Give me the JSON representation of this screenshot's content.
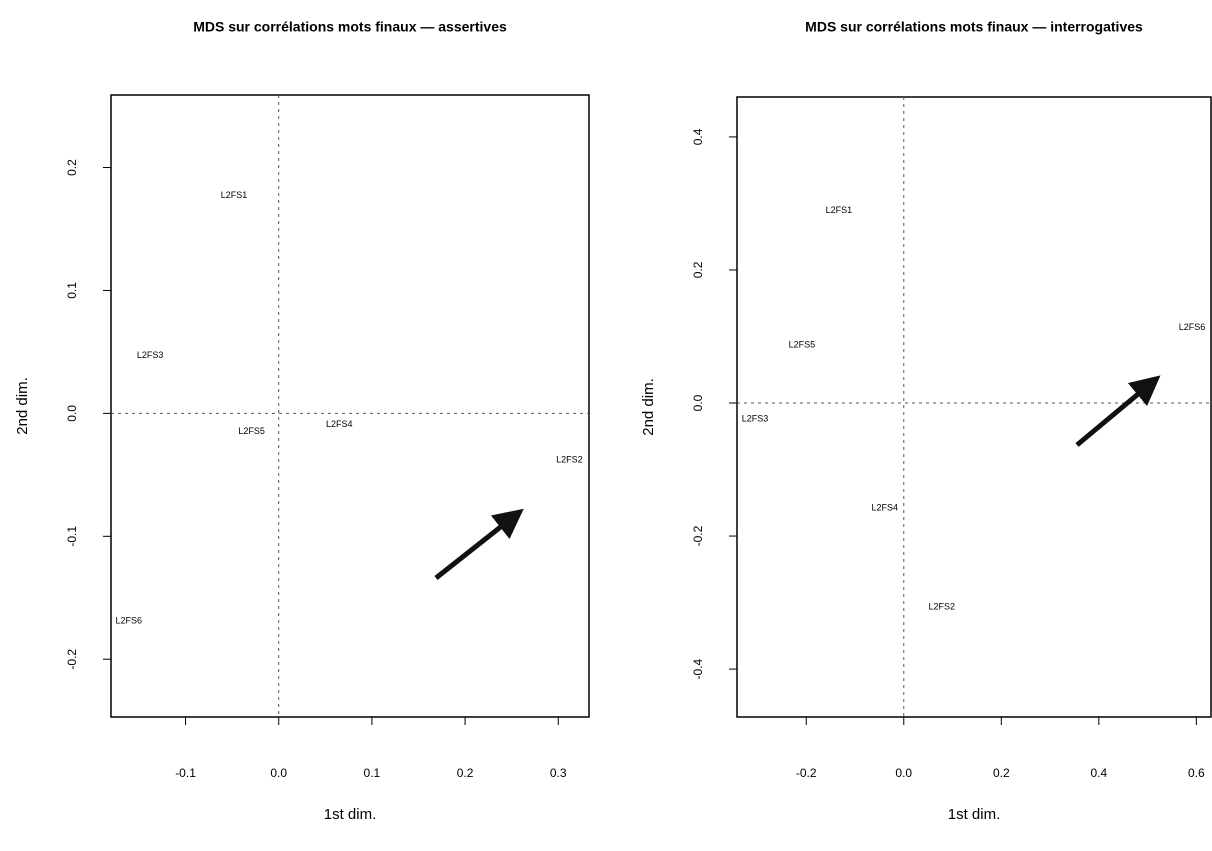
{
  "chart_data": [
    {
      "type": "scatter",
      "title": "MDS sur corrélations mots finaux — assertives",
      "x_label": "1st dim.",
      "y_label": "2nd dim.",
      "point_labels": [
        "L2FS1",
        "L2FS3",
        "L2FS5",
        "L2FS4",
        "L2FS2",
        "L2FS6"
      ],
      "x": [
        -0.048,
        -0.138,
        -0.029,
        0.065,
        0.312,
        -0.161
      ],
      "values": [
        0.177,
        0.047,
        -0.015,
        -0.009,
        -0.038,
        -0.169
      ],
      "xlim": [
        -0.18,
        0.333
      ],
      "ylim": [
        -0.247,
        0.259
      ],
      "xticks": [
        -0.1,
        {
          "value": 0,
          "label": "0.0"
        },
        0.1,
        0.2,
        0.3
      ],
      "yticks": [
        -0.2,
        -0.1,
        {
          "value": 0,
          "label": "0.0"
        },
        0.1,
        0.2
      ]
    },
    {
      "type": "scatter",
      "title": "MDS sur corrélations mots finaux — interrogatives",
      "x_label": "1st dim.",
      "y_label": "2nd dim.",
      "point_labels": [
        "L2FS1",
        "L2FS5",
        "L2FS6",
        "L2FS3",
        "L2FS4",
        "L2FS2"
      ],
      "x": [
        -0.133,
        -0.209,
        0.591,
        -0.305,
        -0.039,
        0.078
      ],
      "values": [
        0.289,
        0.087,
        0.113,
        -0.024,
        -0.158,
        -0.307
      ],
      "xlim": [
        -0.342,
        0.63
      ],
      "ylim": [
        -0.472,
        0.46
      ],
      "xticks": [
        -0.2,
        {
          "value": 0,
          "label": "0.0"
        },
        0.2,
        0.4,
        0.6
      ],
      "yticks": [
        -0.4,
        -0.2,
        {
          "value": 0,
          "label": "0.0"
        },
        0.2,
        0.4
      ]
    }
  ]
}
